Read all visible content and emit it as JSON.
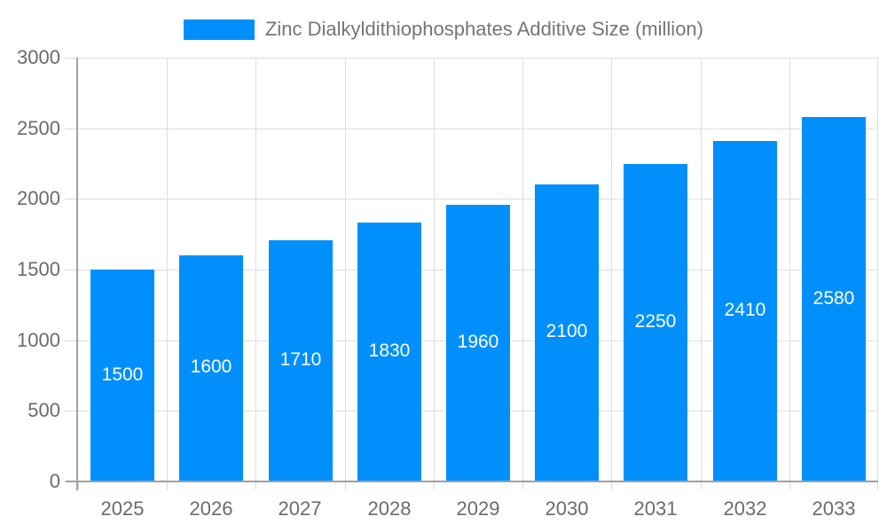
{
  "page": {
    "background": "#ffffff"
  },
  "legend": {
    "label": "Zinc Dialkyldithiophosphates Additive Size (million)"
  },
  "chart_data": {
    "type": "bar",
    "title": "Zinc Dialkyldithiophosphates Additive Size (million)",
    "categories": [
      "2025",
      "2026",
      "2027",
      "2028",
      "2029",
      "2030",
      "2031",
      "2032",
      "2033"
    ],
    "series": [
      {
        "name": "Zinc Dialkyldithiophosphates Additive Size (million)",
        "values": [
          1500,
          1600,
          1710,
          1830,
          1960,
          2100,
          2250,
          2410,
          2580
        ]
      }
    ],
    "data_labels": [
      "1500",
      "1600",
      "1710",
      "1830",
      "1960",
      "2100",
      "2250",
      "2410",
      "2580"
    ],
    "xlabel": "",
    "ylabel": "",
    "ylim": [
      0,
      3000
    ],
    "y_ticks": [
      0,
      500,
      1000,
      1500,
      2000,
      2500,
      3000
    ],
    "y_tick_labels": [
      "0",
      "500",
      "1000",
      "1500",
      "2000",
      "2500",
      "3000"
    ],
    "grid": true,
    "legend_position": "top",
    "colors": {
      "bar": "#008FFB",
      "data_label": "#ffffff",
      "axis_label": "#6b6b6b",
      "legend_label": "#757575",
      "grid": "#dedede",
      "tick": "#d9d9d9",
      "axis_line": "#a0a0a0"
    }
  }
}
